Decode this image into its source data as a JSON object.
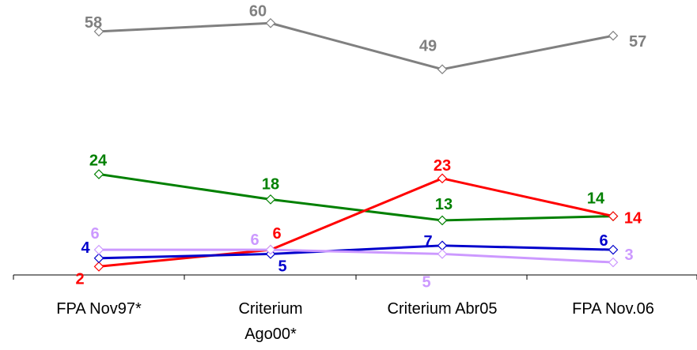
{
  "chart_data": {
    "type": "line",
    "categories": [
      [
        "FPA Nov97*"
      ],
      [
        "Criterium",
        "Ago00*"
      ],
      [
        "Criterium Abr05"
      ],
      [
        "FPA Nov.06"
      ]
    ],
    "series": [
      {
        "color": "#808080",
        "values": [
          58,
          60,
          49,
          57
        ]
      },
      {
        "color": "#008000",
        "values": [
          24,
          18,
          13,
          14
        ]
      },
      {
        "color": "#ff0000",
        "values": [
          2,
          6,
          23,
          14
        ]
      },
      {
        "color": "#0000cc",
        "values": [
          4,
          5,
          7,
          6
        ]
      },
      {
        "color": "#cc99ff",
        "values": [
          6,
          6,
          5,
          3
        ]
      }
    ],
    "ylim": [
      0,
      64
    ],
    "xlabel": "",
    "ylabel": "",
    "marker": "diamond-open",
    "grid": false,
    "legend": "none"
  }
}
